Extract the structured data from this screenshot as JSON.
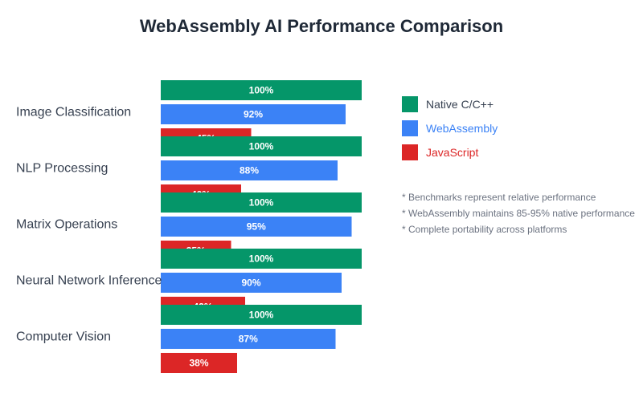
{
  "chart_data": {
    "type": "bar",
    "orientation": "horizontal",
    "title": "WebAssembly AI Performance Comparison",
    "categories": [
      "Image Classification",
      "NLP Processing",
      "Matrix Operations",
      "Neural Network Inference",
      "Computer Vision"
    ],
    "series": [
      {
        "name": "Native C/C++",
        "color": "#059669",
        "values": [
          100,
          100,
          100,
          100,
          100
        ]
      },
      {
        "name": "WebAssembly",
        "color": "#3b82f6",
        "values": [
          92,
          88,
          95,
          90,
          87
        ]
      },
      {
        "name": "JavaScript",
        "color": "#dc2626",
        "values": [
          45,
          40,
          35,
          42,
          38
        ]
      }
    ],
    "value_suffix": "%",
    "xlim": [
      0,
      100
    ],
    "legend_position": "right",
    "notes": [
      "* Benchmarks represent relative performance",
      "* WebAssembly maintains 85-95% native performance",
      "* Complete portability across platforms"
    ],
    "colors": {
      "title": "#1f2937",
      "category_label": "#374151",
      "legend_native_text": "#374151",
      "note_text": "#6b7280",
      "bar_label": "#ffffff"
    }
  }
}
